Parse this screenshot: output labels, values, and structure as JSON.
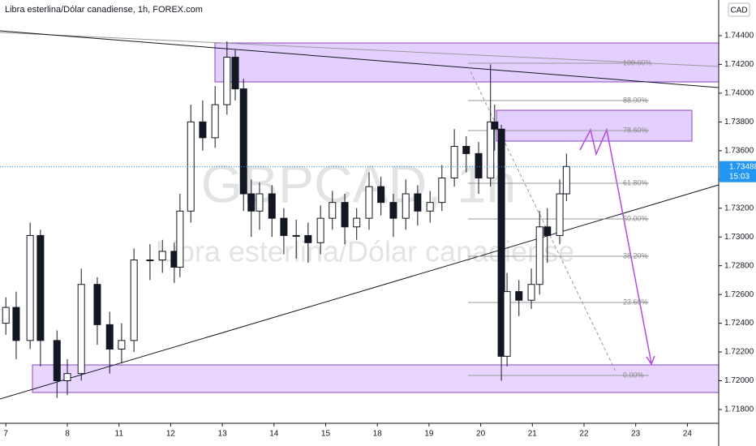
{
  "chart_data": {
    "type": "candlestick",
    "title": "Libra esterlina/Dólar canadiense, 1h, FOREX.com",
    "watermark": "GBPCAD, 1h",
    "watermark_subtitle": "Libra esterlina/Dólar canadiense",
    "currency_button": "CAD",
    "x": [
      -0.19,
      0.01,
      0.28,
      0.48,
      0.8,
      1.0,
      1.27,
      1.58,
      1.82,
      2.05,
      2.29,
      2.6,
      2.84,
      3.07,
      3.18,
      3.39,
      3.62,
      3.86,
      4.09,
      4.25,
      4.41,
      4.56,
      4.72,
      4.96,
      5.19,
      5.43,
      5.66,
      5.9,
      6.13,
      6.37,
      6.6,
      6.84,
      7.07,
      7.31,
      7.55,
      7.78,
      8.02,
      8.25,
      8.49,
      8.72,
      8.96,
      9.19,
      9.27,
      9.4,
      9.51,
      9.74,
      9.98,
      10.14,
      10.29,
      10.53,
      10.66
    ],
    "open": [
      1.724,
      1.7251,
      1.7228,
      1.7301,
      1.7228,
      1.72,
      1.7205,
      1.7267,
      1.7239,
      1.7222,
      1.7228,
      1.7284,
      1.7284,
      1.729,
      1.7279,
      1.7318,
      1.738,
      1.7369,
      1.7392,
      1.7425,
      1.7403,
      1.733,
      1.7318,
      1.733,
      1.7313,
      1.7301,
      1.7301,
      1.7296,
      1.7313,
      1.7324,
      1.7307,
      1.7313,
      1.7335,
      1.7324,
      1.7313,
      1.733,
      1.7318,
      1.7324,
      1.7341,
      1.7363,
      1.7358,
      1.7341,
      1.738,
      1.7375,
      1.7217,
      1.7262,
      1.7256,
      1.7267,
      1.7307,
      1.7301,
      1.733
    ],
    "high": [
      1.7258,
      1.7262,
      1.731,
      1.7305,
      1.7235,
      1.7215,
      1.7278,
      1.7272,
      1.7248,
      1.724,
      1.7292,
      1.7295,
      1.7298,
      1.7296,
      1.733,
      1.7392,
      1.7395,
      1.7405,
      1.7436,
      1.743,
      1.741,
      1.734,
      1.7338,
      1.7336,
      1.732,
      1.7312,
      1.731,
      1.7322,
      1.7332,
      1.733,
      1.732,
      1.7345,
      1.7342,
      1.733,
      1.734,
      1.7336,
      1.7332,
      1.735,
      1.7375,
      1.737,
      1.7366,
      1.742,
      1.7392,
      1.7378,
      1.7275,
      1.727,
      1.7278,
      1.7318,
      1.732,
      1.734,
      1.7358
    ],
    "low": [
      1.7232,
      1.7215,
      1.7222,
      1.721,
      1.7188,
      1.719,
      1.72,
      1.7225,
      1.7205,
      1.7212,
      1.722,
      1.727,
      1.7275,
      1.7268,
      1.7272,
      1.731,
      1.736,
      1.7362,
      1.7385,
      1.7395,
      1.7318,
      1.73,
      1.7305,
      1.73,
      1.7288,
      1.7285,
      1.7282,
      1.7288,
      1.7305,
      1.7295,
      1.7298,
      1.7305,
      1.7315,
      1.73,
      1.7305,
      1.7308,
      1.731,
      1.7318,
      1.7335,
      1.7345,
      1.733,
      1.7335,
      1.736,
      1.72,
      1.721,
      1.7245,
      1.725,
      1.726,
      1.7282,
      1.7295,
      1.7325
    ],
    "close": [
      1.7251,
      1.7228,
      1.7301,
      1.7228,
      1.72,
      1.7205,
      1.7267,
      1.7239,
      1.7222,
      1.7228,
      1.7284,
      1.7284,
      1.729,
      1.7279,
      1.7318,
      1.738,
      1.7369,
      1.7392,
      1.7425,
      1.7403,
      1.733,
      1.7318,
      1.733,
      1.7313,
      1.7301,
      1.7301,
      1.7296,
      1.7313,
      1.7324,
      1.7307,
      1.7313,
      1.7335,
      1.7324,
      1.7313,
      1.733,
      1.7318,
      1.7324,
      1.7341,
      1.7363,
      1.7358,
      1.7341,
      1.738,
      1.7375,
      1.7217,
      1.7262,
      1.7256,
      1.7267,
      1.7307,
      1.7301,
      1.733,
      1.7349
    ],
    "up_color": "#ffffff",
    "down_color": "#131722",
    "xlim": [
      -0.303,
      13.606
    ],
    "xticks": [
      {
        "value": -0.19,
        "label": "7"
      },
      {
        "value": 1,
        "label": "8"
      },
      {
        "value": 2,
        "label": "11"
      },
      {
        "value": 3,
        "label": "12"
      },
      {
        "value": 4,
        "label": "13"
      },
      {
        "value": 5,
        "label": "14"
      },
      {
        "value": 6,
        "label": "15"
      },
      {
        "value": 7,
        "label": "18"
      },
      {
        "value": 8,
        "label": "19"
      },
      {
        "value": 9,
        "label": "20"
      },
      {
        "value": 10,
        "label": "21"
      },
      {
        "value": 11,
        "label": "22"
      },
      {
        "value": 12,
        "label": "23"
      },
      {
        "value": 13,
        "label": "24"
      }
    ],
    "ylim": [
      1.71704,
      1.74648
    ],
    "yticks": [
      {
        "value": 1.718,
        "label": "1.71800"
      },
      {
        "value": 1.72,
        "label": "1.72000"
      },
      {
        "value": 1.722,
        "label": "1.72200"
      },
      {
        "value": 1.724,
        "label": "1.72400"
      },
      {
        "value": 1.726,
        "label": "1.72600"
      },
      {
        "value": 1.728,
        "label": "1.72800"
      },
      {
        "value": 1.73,
        "label": "1.73000"
      },
      {
        "value": 1.732,
        "label": "1.73200"
      },
      {
        "value": 1.734,
        "label": "1.73400"
      },
      {
        "value": 1.736,
        "label": "1.73600"
      },
      {
        "value": 1.738,
        "label": "1.73800"
      },
      {
        "value": 1.74,
        "label": "1.74000"
      },
      {
        "value": 1.742,
        "label": "1.74200"
      },
      {
        "value": 1.744,
        "label": "1.74400"
      }
    ],
    "last_price": {
      "value": 1.73488,
      "label": "1.73488"
    },
    "countdown": "15:03",
    "fib_labels": [
      "100.00%",
      "88.00%",
      "78.60%",
      "61.80%",
      "50.00%",
      "38.20%",
      "23.60%",
      "0.00%"
    ]
  }
}
